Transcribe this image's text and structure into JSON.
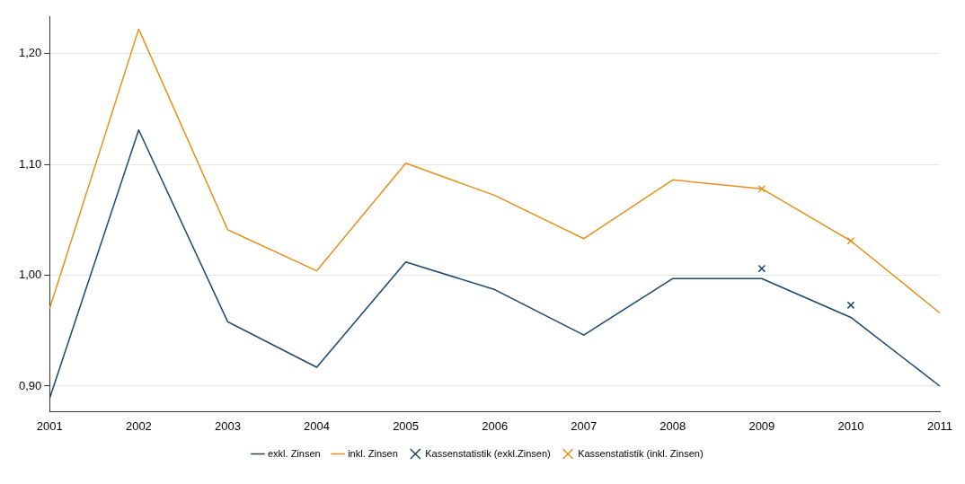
{
  "chart_data": {
    "type": "line",
    "categories": [
      "2001",
      "2002",
      "2003",
      "2004",
      "2005",
      "2006",
      "2007",
      "2008",
      "2009",
      "2010",
      "2011"
    ],
    "series": [
      {
        "name": "exkl. Zinsen",
        "color": "#1a476f",
        "values": [
          0.889,
          1.131,
          0.958,
          0.917,
          1.012,
          0.987,
          0.946,
          0.997,
          0.997,
          0.962,
          0.9
        ]
      },
      {
        "name": "inkl. Zinsen",
        "color": "#e8901c",
        "values": [
          0.97,
          1.222,
          1.041,
          1.004,
          1.101,
          1.072,
          1.033,
          1.086,
          1.078,
          1.031,
          0.966
        ]
      },
      {
        "name": "Kassenstatistik (exkl.Zinsen)",
        "type": "scatter",
        "marker": "cross",
        "color": "#1a476f",
        "values": [
          null,
          null,
          null,
          null,
          null,
          null,
          null,
          null,
          1.006,
          0.973,
          null
        ]
      },
      {
        "name": "Kassenstatistik (inkl. Zinsen)",
        "type": "scatter",
        "marker": "cross",
        "color": "#e8901c",
        "values": [
          null,
          null,
          null,
          null,
          null,
          null,
          null,
          null,
          1.078,
          1.031,
          null
        ]
      }
    ],
    "ylim": [
      0.877,
      1.233
    ],
    "yticks": [
      {
        "value": 0.9,
        "label": "0,90"
      },
      {
        "value": 1.0,
        "label": "1,00"
      },
      {
        "value": 1.1,
        "label": "1,10"
      },
      {
        "value": 1.2,
        "label": "1,20"
      }
    ],
    "grid": "y",
    "legend": "bottom",
    "marker": "none",
    "line_style": "solid"
  }
}
